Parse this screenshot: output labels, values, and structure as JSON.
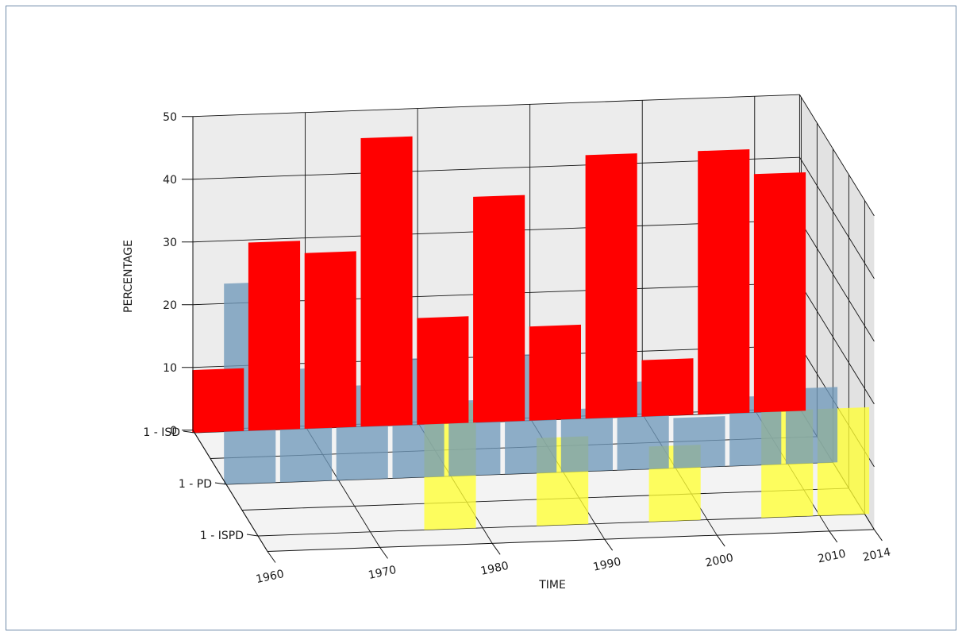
{
  "chart_data": {
    "type": "bar",
    "xlabel": "TIME",
    "ylabel": "PERCENTAGE",
    "z_ticks": [
      0,
      10,
      20,
      30,
      40,
      50
    ],
    "zlim": [
      0,
      50
    ],
    "x_ticks": [
      "1960",
      "1970",
      "1980",
      "1990",
      "2000",
      "2010",
      "2014"
    ],
    "y_ticks": [
      "1 - ISD",
      "1 - PD",
      "1 - ISPD"
    ],
    "grid": true,
    "series": [
      {
        "name": "1 - ISD",
        "color": "#ff0000",
        "x": [
          "1960",
          "1965",
          "1970",
          "1975",
          "1980",
          "1985",
          "1990",
          "1995",
          "2000",
          "2005",
          "2010"
        ],
        "values": [
          10,
          30,
          28,
          46,
          17,
          36,
          15,
          42,
          9,
          42,
          38
        ]
      },
      {
        "name": "1 - PD",
        "color": "#6f99ba",
        "x": [
          "1960",
          "1965",
          "1970",
          "1975",
          "1980",
          "1985",
          "1990",
          "1995",
          "2000",
          "2005",
          "2010"
        ],
        "values": [
          32,
          18,
          15,
          19,
          12,
          19,
          10,
          14,
          8,
          11,
          12
        ]
      },
      {
        "name": "1 - ISPD",
        "color": "#ffff33",
        "x": [
          "1960",
          "1965",
          "1970",
          "1975",
          "1980",
          "1985",
          "1990",
          "1995",
          "2000",
          "2005",
          "2010"
        ],
        "values": [
          0,
          0,
          0,
          20,
          0,
          14,
          0,
          12,
          0,
          17,
          17
        ]
      }
    ]
  }
}
